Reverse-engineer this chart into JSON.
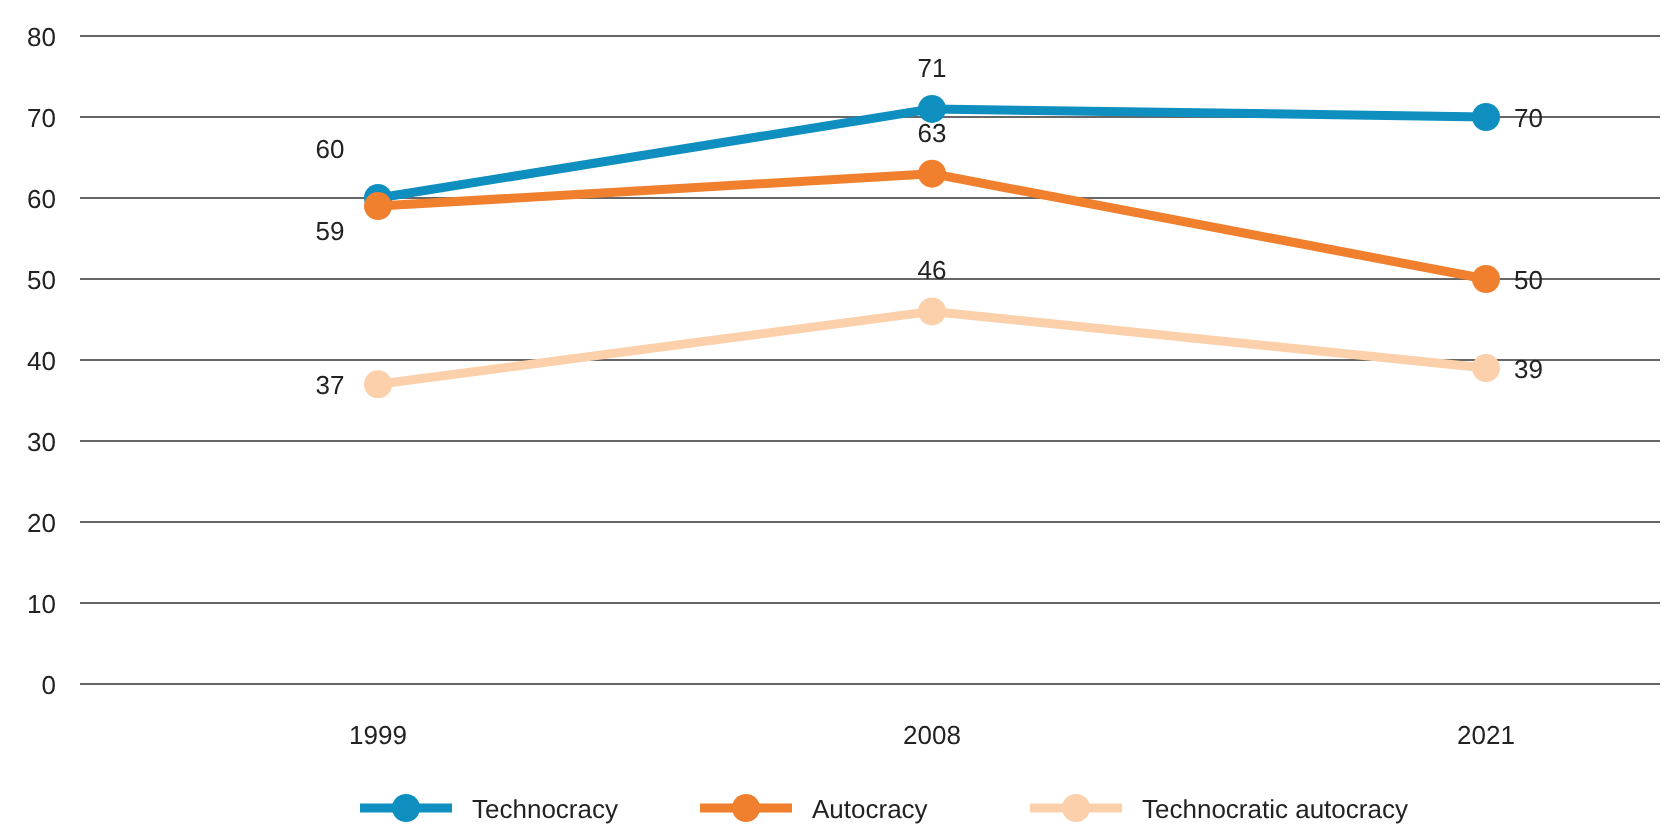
{
  "chart_data": {
    "type": "line",
    "categories": [
      "1999",
      "2008",
      "2021"
    ],
    "series": [
      {
        "name": "Technocracy",
        "color": "#0e8fc0",
        "values": [
          60,
          71,
          70
        ]
      },
      {
        "name": "Autocracy",
        "color": "#f07f2e",
        "values": [
          59,
          63,
          50
        ]
      },
      {
        "name": "Technocratic autocracy",
        "color": "#fbd0aa",
        "values": [
          37,
          46,
          39
        ]
      }
    ],
    "ylim": [
      0,
      80
    ],
    "yticks": [
      0,
      10,
      20,
      30,
      40,
      50,
      60,
      70,
      80
    ],
    "grid": "y",
    "legend": "bottom",
    "marker": "circle",
    "line_style": "solid",
    "data_labels": true
  }
}
